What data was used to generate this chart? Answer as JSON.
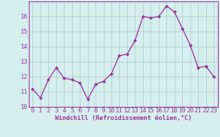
{
  "x": [
    0,
    1,
    2,
    3,
    4,
    5,
    6,
    7,
    8,
    9,
    10,
    11,
    12,
    13,
    14,
    15,
    16,
    17,
    18,
    19,
    20,
    21,
    22,
    23
  ],
  "y": [
    11.2,
    10.6,
    11.8,
    12.6,
    11.9,
    11.8,
    11.6,
    10.5,
    11.5,
    11.7,
    12.2,
    13.4,
    13.5,
    14.4,
    16.0,
    15.9,
    16.0,
    16.7,
    16.3,
    15.2,
    14.1,
    12.6,
    12.7,
    12.0
  ],
  "line_color": "#993399",
  "marker": "D",
  "marker_size": 2.2,
  "bg_color": "#d5eeee",
  "grid_color": "#b0cccc",
  "xlabel": "Windchill (Refroidissement éolien,°C)",
  "ylim": [
    10,
    17
  ],
  "xlim_min": -0.5,
  "xlim_max": 23.5,
  "yticks": [
    10,
    11,
    12,
    13,
    14,
    15,
    16
  ],
  "xticks": [
    0,
    1,
    2,
    3,
    4,
    5,
    6,
    7,
    8,
    9,
    10,
    11,
    12,
    13,
    14,
    15,
    16,
    17,
    18,
    19,
    20,
    21,
    22,
    23
  ],
  "xlabel_fontsize": 6.5,
  "tick_fontsize": 6.5,
  "line_width": 1.0
}
